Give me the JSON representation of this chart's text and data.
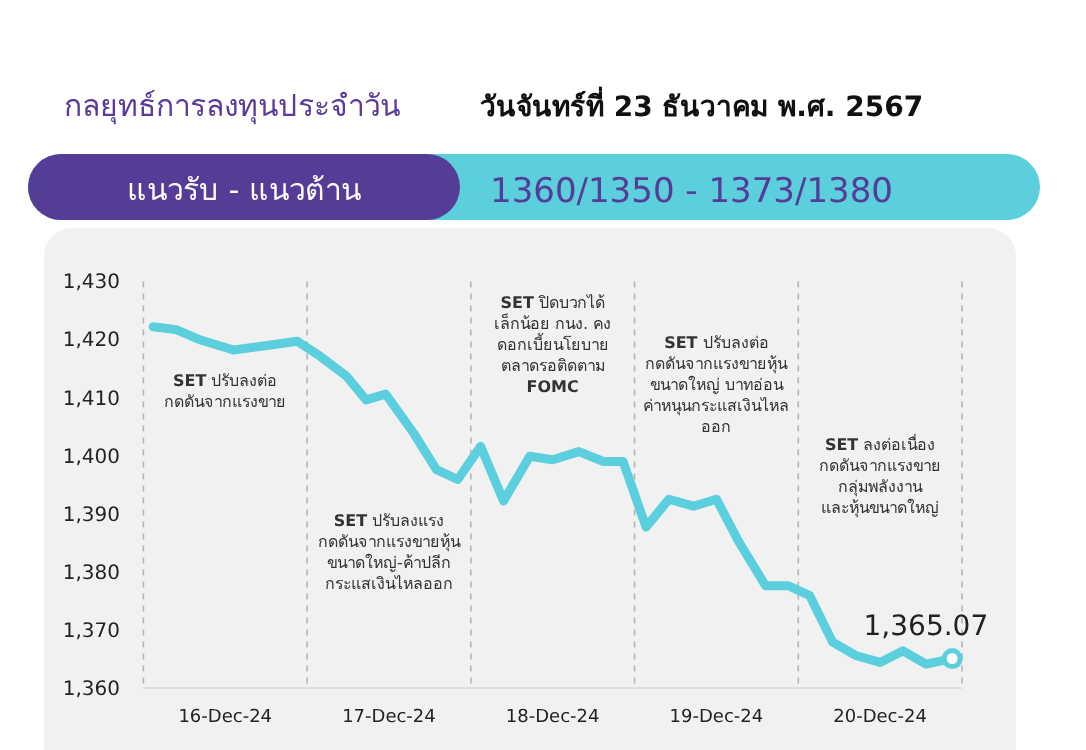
{
  "chart_data": {
    "type": "line",
    "title": "กลยุทธ์การลงทุนประจำวัน",
    "subtitle": "วันจันทร์ที่ 23 ธันวาคม พ.ศ. 2567",
    "annotations": [
      "แนวรับ - แนวต้าน",
      "1360/1350 - 1373/1380",
      "**SET** ปรับลงต่อ\nกดดันจากแรงขาย",
      "**SET** ปรับลงแรง\nกดดันจากแรงขายหุ้น\nขนาดใหญ่-ค้าปลีก\nกระแสเงินไหลออก",
      "**SET** ปิดบวกได้\nเล็กน้อย กนง. คง\nดอกเบี้ยนโยบาย\nตลาดรอติดตาม\n**FOMC**",
      "**SET** ปรับลงต่อ\nกดดันจากแรงขายหุ้น\nขนาดใหญ่ บาทอ่อน\nค่าหนุนกระแสเงินไหล\nออก",
      "**SET** ลงต่อเนื่อง\nกดดันจากแรงขาย\nกลุ่มพลังงาน\nและหุ้นขนาดใหญ่"
    ],
    "x": [
      "--12-16T01:26",
      "--12-16T04:48",
      "--12-16T08:24",
      "--12-16T13:12",
      "--12-16T17:02",
      "--12-16T22:34",
      "--12-17T01:55",
      "--12-17T05:46",
      "--12-17T08:38",
      "--12-17T11:31",
      "--12-17T15:36",
      "--12-17T18:58",
      "--12-17T22:05",
      "--12-18T01:26",
      "--12-18T04:48",
      "--12-18T08:38",
      "--12-18T12:00",
      "--12-18T15:50",
      "--12-18T19:26",
      "--12-18T22:19",
      "--12-19T01:41",
      "--12-19T05:02",
      "--12-19T08:38",
      "--12-19T12:00",
      "--12-19T15:22",
      "--12-19T19:12",
      "--12-19T22:34",
      "--12-20T01:41",
      "--12-20T05:02",
      "--12-20T08:24",
      "--12-20T12:00",
      "--12-20T15:22",
      "--12-20T18:43",
      "--12-20T22:34"
    ],
    "values": [
      1422.2,
      1421.7,
      1419.9,
      1418.2,
      1418.8,
      1419.7,
      1417.1,
      1413.7,
      1409.6,
      1410.6,
      1403.9,
      1397.6,
      1395.9,
      1401.6,
      1392.2,
      1399.9,
      1399.3,
      1400.7,
      1399.0,
      1399.0,
      1387.7,
      1392.5,
      1391.3,
      1392.5,
      1385.0,
      1377.6,
      1377.6,
      1375.9,
      1367.9,
      1365.6,
      1364.4,
      1366.4,
      1364.1,
      1365.07
    ],
    "value_labels": [
      null,
      null,
      null,
      null,
      null,
      null,
      null,
      null,
      null,
      null,
      null,
      null,
      null,
      null,
      null,
      null,
      null,
      null,
      null,
      null,
      null,
      null,
      null,
      null,
      null,
      null,
      null,
      null,
      null,
      null,
      null,
      null,
      null,
      "1,365.07"
    ],
    "color": "#5ccfdf",
    "xlim": [
      "--12-16T00:00",
      "--12-21T00:00"
    ],
    "xticks": [
      {
        "value": "--12-16T00:00",
        "label": null
      },
      {
        "value": "--12-16T12:00",
        "label": "16-Dec-24"
      },
      {
        "value": "--12-17T00:00",
        "label": null
      },
      {
        "value": "--12-17T12:00",
        "label": "17-Dec-24"
      },
      {
        "value": "--12-18T00:00",
        "label": null
      },
      {
        "value": "--12-18T12:00",
        "label": "18-Dec-24"
      },
      {
        "value": "--12-19T00:00",
        "label": null
      },
      {
        "value": "--12-19T12:00",
        "label": "19-Dec-24"
      },
      {
        "value": "--12-20T00:00",
        "label": null
      },
      {
        "value": "--12-20T12:00",
        "label": "20-Dec-24"
      },
      {
        "value": "--12-21T00:00",
        "label": null
      }
    ],
    "ylim": [
      1360,
      1430
    ],
    "yticks": [
      {
        "value": 1360,
        "label": "1,360"
      },
      {
        "value": 1370,
        "label": "1,370"
      },
      {
        "value": 1380,
        "label": "1,380"
      },
      {
        "value": 1390,
        "label": "1,390"
      },
      {
        "value": 1400,
        "label": "1,400"
      },
      {
        "value": 1410,
        "label": "1,410"
      },
      {
        "value": 1420,
        "label": "1,420"
      },
      {
        "value": 1430,
        "label": "1,430"
      }
    ],
    "grid": "x"
  }
}
